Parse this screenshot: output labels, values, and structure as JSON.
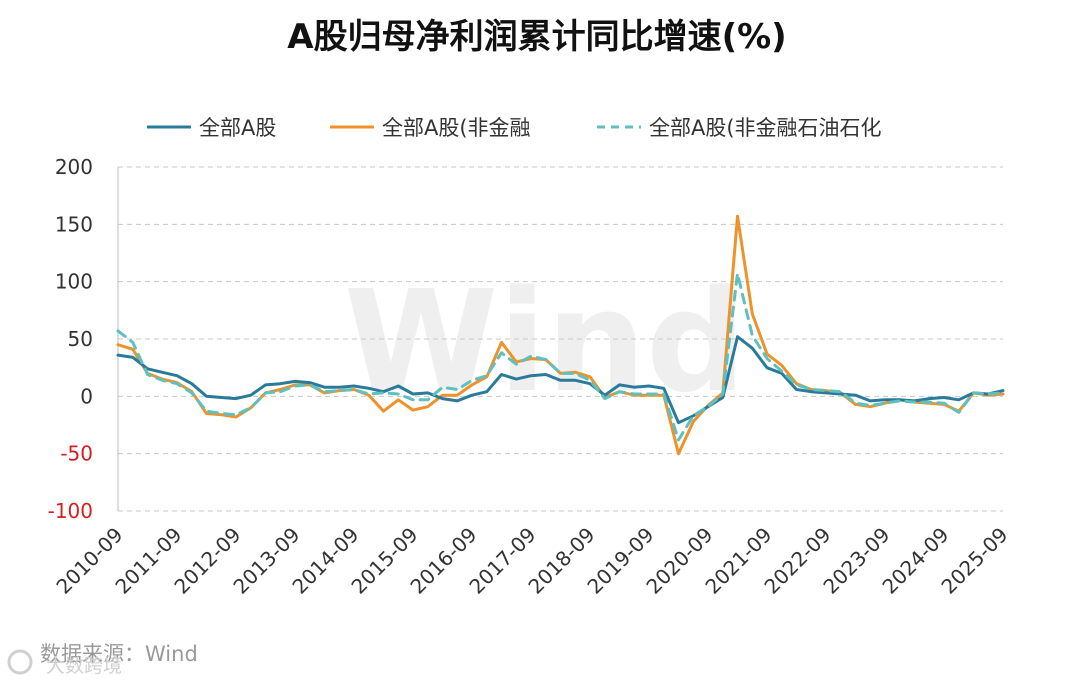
{
  "watermark": "Wind",
  "source": "数据来源：Wind",
  "brand": "大数跨境",
  "chart_data": {
    "type": "line",
    "title": "A股归母净利润累计同比增速(%)",
    "xlabel": "",
    "ylabel": "",
    "ylim": [
      -100,
      200
    ],
    "yticks": [
      "200",
      "150",
      "100",
      "50",
      "0",
      "-50",
      "-100"
    ],
    "ytick_values": [
      200,
      150,
      100,
      50,
      0,
      -50,
      -100
    ],
    "grid": true,
    "legend_position": "top",
    "xtick_labels": [
      "2010-09",
      "2011-09",
      "2012-09",
      "2013-09",
      "2014-09",
      "2015-09",
      "2016-09",
      "2017-09",
      "2018-09",
      "2019-09",
      "2020-09",
      "2021-09",
      "2022-09",
      "2023-09",
      "2024-09",
      "2025-09"
    ],
    "x": [
      "2010-09",
      "2010-12",
      "2011-03",
      "2011-06",
      "2011-09",
      "2011-12",
      "2012-03",
      "2012-06",
      "2012-09",
      "2012-12",
      "2013-03",
      "2013-06",
      "2013-09",
      "2013-12",
      "2014-03",
      "2014-06",
      "2014-09",
      "2014-12",
      "2015-03",
      "2015-06",
      "2015-09",
      "2015-12",
      "2016-03",
      "2016-06",
      "2016-09",
      "2016-12",
      "2017-03",
      "2017-06",
      "2017-09",
      "2017-12",
      "2018-03",
      "2018-06",
      "2018-09",
      "2018-12",
      "2019-03",
      "2019-06",
      "2019-09",
      "2019-12",
      "2020-03",
      "2020-06",
      "2020-09",
      "2020-12",
      "2021-03",
      "2021-06",
      "2021-09",
      "2021-12",
      "2022-03",
      "2022-06",
      "2022-09",
      "2022-12",
      "2023-03",
      "2023-06",
      "2023-09",
      "2023-12",
      "2024-03",
      "2024-06",
      "2024-09",
      "2024-12",
      "2025-03",
      "2025-06",
      "2025-09"
    ],
    "series": [
      {
        "name": "全部A股",
        "color": "#2a7b9b",
        "dash": "solid",
        "values": [
          36,
          34,
          24,
          21,
          18,
          11,
          0,
          -1,
          -2,
          1,
          10,
          11,
          13,
          12,
          8,
          8,
          9,
          7,
          4,
          9,
          2,
          3,
          -2,
          -4,
          1,
          4,
          19,
          15,
          18,
          19,
          14,
          14,
          11,
          1,
          10,
          8,
          9,
          7,
          -23,
          -17,
          -9,
          -1,
          52,
          42,
          25,
          20,
          6,
          4,
          3,
          2,
          1,
          -4,
          -3,
          -3,
          -4,
          -2,
          -1,
          -3,
          3,
          2,
          5
        ]
      },
      {
        "name": "全部A股(非金融",
        "color": "#f0922a",
        "dash": "solid",
        "values": [
          45,
          41,
          20,
          15,
          12,
          4,
          -15,
          -16,
          -18,
          -10,
          3,
          6,
          10,
          10,
          3,
          5,
          6,
          1,
          -13,
          -3,
          -12,
          -9,
          1,
          1,
          10,
          17,
          47,
          30,
          33,
          32,
          20,
          21,
          17,
          -1,
          4,
          1,
          1,
          1,
          -50,
          -22,
          -8,
          3,
          157,
          72,
          37,
          27,
          11,
          6,
          5,
          3,
          -7,
          -9,
          -6,
          -3,
          -5,
          -6,
          -7,
          -13,
          3,
          1,
          2
        ]
      },
      {
        "name": "全部A股(非金融石油石化",
        "color": "#5fc0c0",
        "dash": "dashed",
        "values": [
          57,
          47,
          19,
          14,
          11,
          3,
          -13,
          -15,
          -16,
          -10,
          3,
          4,
          9,
          10,
          4,
          5,
          6,
          2,
          3,
          2,
          -3,
          -3,
          8,
          6,
          14,
          18,
          38,
          28,
          35,
          32,
          20,
          20,
          14,
          -2,
          4,
          2,
          2,
          2,
          -38,
          -17,
          -9,
          2,
          107,
          53,
          33,
          22,
          10,
          6,
          5,
          4,
          -6,
          -8,
          -6,
          -4,
          -5,
          -5,
          -6,
          -14,
          3,
          2,
          3
        ]
      }
    ]
  }
}
